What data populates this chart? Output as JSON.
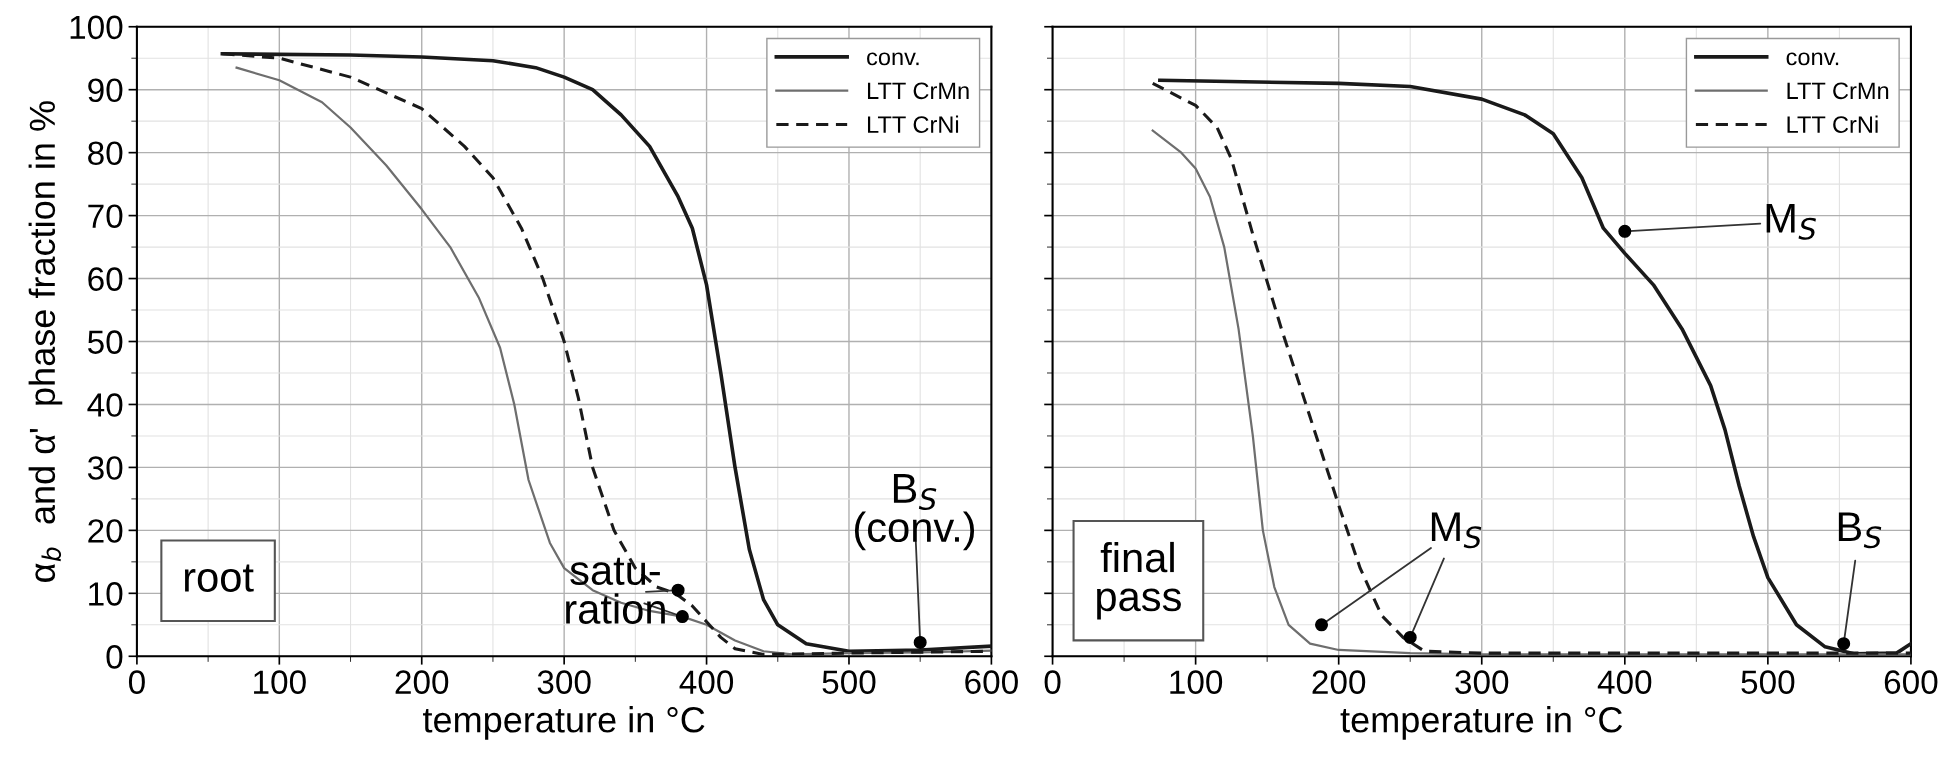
{
  "chart_data": [
    {
      "type": "line",
      "xlabel": "temperature in °C",
      "ylabel": "α$_{b}$  and α'  phase fraction in %",
      "xlim": [
        0,
        600
      ],
      "xticks": [
        0,
        100,
        200,
        300,
        400,
        500,
        600
      ],
      "ylim": [
        0,
        100
      ],
      "yticks": [
        0,
        10,
        20,
        30,
        40,
        50,
        60,
        70,
        80,
        90,
        100
      ],
      "grid": true,
      "legend": "top right",
      "annotations": [
        "root",
        {
          "text": "satu-\nration",
          "x": 380,
          "y": 10.5
        },
        {
          "text": "B$_{S}$\n(conv.)",
          "x": 550,
          "y": 2.2
        }
      ],
      "series": [
        {
          "name": "conv.",
          "color": "#1a1a1a",
          "line_style": "solid",
          "x": [
            60,
            150,
            200,
            250,
            280,
            300,
            320,
            340,
            360,
            380,
            390,
            400,
            410,
            420,
            430,
            440,
            450,
            470,
            500,
            550,
            600
          ],
          "values": [
            95.7,
            95.5,
            95.2,
            94.6,
            93.5,
            92,
            90,
            86,
            81,
            73,
            68,
            59,
            45,
            30,
            17,
            9,
            5,
            2,
            0.8,
            1,
            1.6
          ]
        },
        {
          "name": "LTT CrMn",
          "color": "#6e6e6e",
          "line_style": "solid",
          "x": [
            70,
            100,
            130,
            150,
            175,
            200,
            220,
            240,
            255,
            265,
            275,
            290,
            300,
            320,
            340,
            360,
            383,
            400,
            420,
            440,
            460,
            500,
            550,
            600
          ],
          "values": [
            93.5,
            91.5,
            88,
            84,
            78,
            71,
            65,
            57,
            49,
            40,
            28,
            18,
            14,
            10.5,
            8.5,
            7.2,
            6.3,
            5,
            2.5,
            0.8,
            0.3,
            0.5,
            0.6,
            0.9
          ]
        },
        {
          "name": "LTT CrNi",
          "color": "#1a1a1a",
          "line_style": "dashed",
          "x": [
            60,
            100,
            150,
            200,
            230,
            250,
            270,
            285,
            300,
            310,
            320,
            335,
            350,
            365,
            378,
            390,
            400,
            410,
            420,
            440,
            500,
            600
          ],
          "values": [
            95.7,
            95,
            92,
            87,
            81,
            76,
            68,
            60,
            50,
            41,
            30,
            20,
            14,
            11,
            10,
            8,
            5.5,
            3,
            1.2,
            0.3,
            0.5,
            0.8
          ]
        },
        {
          "type": "scatter",
          "color": "#000000",
          "marker": "circle",
          "x": [
            380,
            383,
            550
          ],
          "values": [
            10.5,
            6.3,
            2.2
          ]
        }
      ]
    },
    {
      "type": "line",
      "xlabel": "temperature in °C",
      "xlim": [
        0,
        600
      ],
      "xticks": [
        0,
        100,
        200,
        300,
        400,
        500,
        600
      ],
      "ylim": [
        0,
        100
      ],
      "yticks": [
        0,
        10,
        20,
        30,
        40,
        50,
        60,
        70,
        80,
        90,
        100
      ],
      "tick_labels": "x",
      "grid": true,
      "legend": "top right",
      "annotations": [
        "final\npass",
        {
          "text": "M$_{S}$",
          "x": 400,
          "y": 67.5
        },
        {
          "text": "M$_{S}$",
          "x": 188,
          "y": 5
        },
        {
          "text": "B$_{S}$",
          "x": 553,
          "y": 2
        }
      ],
      "series": [
        {
          "name": "conv.",
          "color": "#1a1a1a",
          "line_style": "solid",
          "x": [
            75,
            200,
            250,
            300,
            330,
            350,
            370,
            385,
            400,
            420,
            440,
            460,
            470,
            480,
            490,
            500,
            520,
            540,
            560,
            590,
            600
          ],
          "values": [
            91.5,
            91,
            90.5,
            88.5,
            86,
            83,
            76,
            68,
            64,
            59,
            52,
            43,
            36,
            27,
            19,
            12.5,
            5,
            1.5,
            0.4,
            0.5,
            2
          ]
        },
        {
          "name": "LTT CrMn",
          "color": "#6e6e6e",
          "line_style": "solid",
          "x": [
            70,
            90,
            100,
            110,
            120,
            130,
            140,
            147,
            155,
            165,
            180,
            200,
            250,
            300,
            600
          ],
          "values": [
            83.5,
            80,
            77.5,
            73,
            65,
            52,
            35,
            20,
            11,
            5,
            2,
            1,
            0.5,
            0.3,
            0.3
          ]
        },
        {
          "name": "LTT CrNi",
          "color": "#1a1a1a",
          "line_style": "dashed",
          "x": [
            70,
            100,
            115,
            125,
            140,
            160,
            180,
            200,
            215,
            230,
            245,
            260,
            300,
            600
          ],
          "values": [
            91,
            87.5,
            84,
            79,
            67,
            52,
            38,
            24,
            14,
            6.5,
            3,
            0.8,
            0.5,
            0.5
          ]
        },
        {
          "type": "scatter",
          "color": "#000000",
          "marker": "circle",
          "x": [
            400,
            188,
            250,
            553
          ],
          "values": [
            67.5,
            5,
            3,
            2
          ]
        }
      ]
    }
  ]
}
